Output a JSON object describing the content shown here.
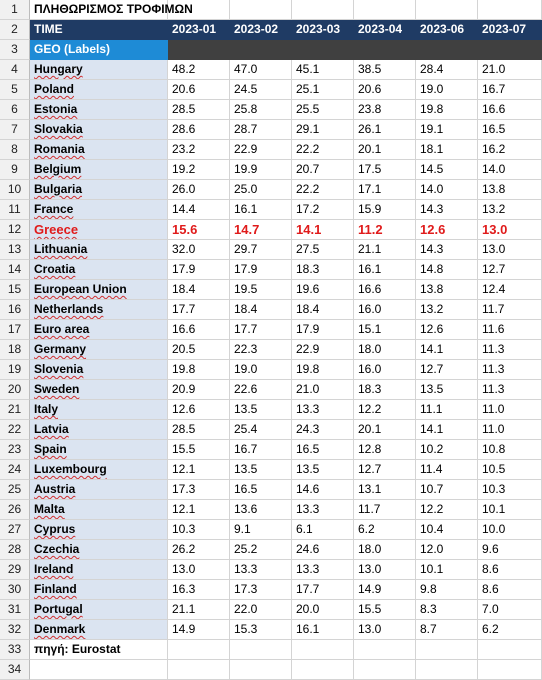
{
  "sheet": {
    "title": "ΠΛΗΘΩΡΙΣΜΟΣ ΤΡΟΦΙΜΩΝ",
    "header_label": "TIME",
    "months": [
      "2023-01",
      "2023-02",
      "2023-03",
      "2023-04",
      "2023-06",
      "2023-07"
    ],
    "geo_label": "GEO (Labels)",
    "highlight_country": "Greece",
    "rows": [
      {
        "country": "Hungary",
        "values": [
          "48.2",
          "47.0",
          "45.1",
          "38.5",
          "28.4",
          "21.0"
        ]
      },
      {
        "country": "Poland",
        "values": [
          "20.6",
          "24.5",
          "25.1",
          "20.6",
          "19.0",
          "16.7"
        ]
      },
      {
        "country": "Estonia",
        "values": [
          "28.5",
          "25.8",
          "25.5",
          "23.8",
          "19.8",
          "16.6"
        ]
      },
      {
        "country": "Slovakia",
        "values": [
          "28.6",
          "28.7",
          "29.1",
          "26.1",
          "19.1",
          "16.5"
        ]
      },
      {
        "country": "Romania",
        "values": [
          "23.2",
          "22.9",
          "22.2",
          "20.1",
          "18.1",
          "16.2"
        ]
      },
      {
        "country": "Belgium",
        "values": [
          "19.2",
          "19.9",
          "20.7",
          "17.5",
          "14.5",
          "14.0"
        ]
      },
      {
        "country": "Bulgaria",
        "values": [
          "26.0",
          "25.0",
          "22.2",
          "17.1",
          "14.0",
          "13.8"
        ]
      },
      {
        "country": "France",
        "values": [
          "14.4",
          "16.1",
          "17.2",
          "15.9",
          "14.3",
          "13.2"
        ]
      },
      {
        "country": "Greece",
        "values": [
          "15.6",
          "14.7",
          "14.1",
          "11.2",
          "12.6",
          "13.0"
        ]
      },
      {
        "country": "Lithuania",
        "values": [
          "32.0",
          "29.7",
          "27.5",
          "21.1",
          "14.3",
          "13.0"
        ]
      },
      {
        "country": "Croatia",
        "values": [
          "17.9",
          "17.9",
          "18.3",
          "16.1",
          "14.8",
          "12.7"
        ]
      },
      {
        "country": "European Union",
        "values": [
          "18.4",
          "19.5",
          "19.6",
          "16.6",
          "13.8",
          "12.4"
        ]
      },
      {
        "country": "Netherlands",
        "values": [
          "17.7",
          "18.4",
          "18.4",
          "16.0",
          "13.2",
          "11.7"
        ]
      },
      {
        "country": "Euro area",
        "values": [
          "16.6",
          "17.7",
          "17.9",
          "15.1",
          "12.6",
          "11.6"
        ]
      },
      {
        "country": "Germany",
        "values": [
          "20.5",
          "22.3",
          "22.9",
          "18.0",
          "14.1",
          "11.3"
        ]
      },
      {
        "country": "Slovenia",
        "values": [
          "19.8",
          "19.0",
          "19.8",
          "16.0",
          "12.7",
          "11.3"
        ]
      },
      {
        "country": "Sweden",
        "values": [
          "20.9",
          "22.6",
          "21.0",
          "18.3",
          "13.5",
          "11.3"
        ]
      },
      {
        "country": "Italy",
        "values": [
          "12.6",
          "13.5",
          "13.3",
          "12.2",
          "11.1",
          "11.0"
        ]
      },
      {
        "country": "Latvia",
        "values": [
          "28.5",
          "25.4",
          "24.3",
          "20.1",
          "14.1",
          "11.0"
        ]
      },
      {
        "country": "Spain",
        "values": [
          "15.5",
          "16.7",
          "16.5",
          "12.8",
          "10.2",
          "10.8"
        ]
      },
      {
        "country": "Luxembourg",
        "values": [
          "12.1",
          "13.5",
          "13.5",
          "12.7",
          "11.4",
          "10.5"
        ]
      },
      {
        "country": "Austria",
        "values": [
          "17.3",
          "16.5",
          "14.6",
          "13.1",
          "10.7",
          "10.3"
        ]
      },
      {
        "country": "Malta",
        "values": [
          "12.1",
          "13.6",
          "13.3",
          "11.7",
          "12.2",
          "10.1"
        ]
      },
      {
        "country": "Cyprus",
        "values": [
          "10.3",
          "9.1",
          "6.1",
          "6.2",
          "10.4",
          "10.0"
        ]
      },
      {
        "country": "Czechia",
        "values": [
          "26.2",
          "25.2",
          "24.6",
          "18.0",
          "12.0",
          "9.6"
        ]
      },
      {
        "country": "Ireland",
        "values": [
          "13.0",
          "13.3",
          "13.3",
          "13.0",
          "10.1",
          "8.6"
        ]
      },
      {
        "country": "Finland",
        "values": [
          "16.3",
          "17.3",
          "17.7",
          "14.9",
          "9.8",
          "8.6"
        ]
      },
      {
        "country": "Portugal",
        "values": [
          "21.1",
          "22.0",
          "20.0",
          "15.5",
          "8.3",
          "7.0"
        ]
      },
      {
        "country": "Denmark",
        "values": [
          "14.9",
          "15.3",
          "16.1",
          "13.0",
          "8.7",
          "6.2"
        ]
      }
    ],
    "source": "πηγή: Eurostat",
    "row_numbers": [
      "1",
      "2",
      "3",
      "4",
      "5",
      "6",
      "7",
      "8",
      "9",
      "10",
      "11",
      "12",
      "13",
      "14",
      "15",
      "16",
      "17",
      "18",
      "19",
      "20",
      "21",
      "22",
      "23",
      "24",
      "25",
      "26",
      "27",
      "28",
      "29",
      "30",
      "31",
      "32",
      "33",
      "34"
    ]
  }
}
